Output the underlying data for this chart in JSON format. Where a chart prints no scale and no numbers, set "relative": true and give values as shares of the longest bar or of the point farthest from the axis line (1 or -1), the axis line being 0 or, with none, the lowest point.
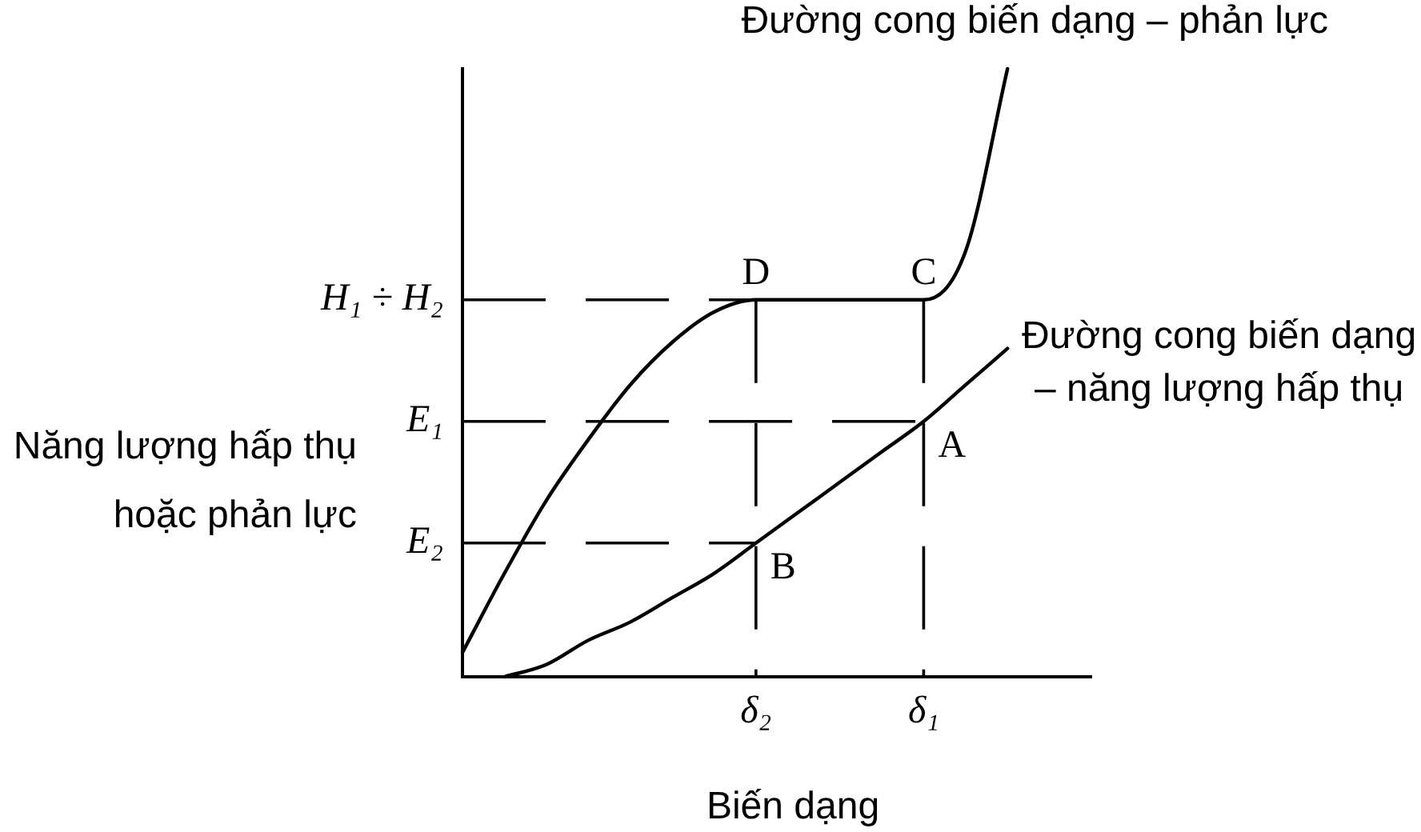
{
  "chart_data": {
    "type": "line",
    "relative": true,
    "grid": false,
    "legend": false,
    "marker": "none",
    "line_style": "solid",
    "categories": [
      null,
      null,
      null,
      null,
      null,
      null,
      null,
      "δ₂",
      null,
      null,
      null,
      "δ₁",
      null,
      null,
      null,
      null
    ],
    "xlabel": "Biến dạng",
    "ylabel": "Năng lượng hấp thụ hoặc phản lực",
    "series": [
      {
        "name": "Đường cong biến dạng – phản lực",
        "color": "#000000",
        "values": [
          0.04,
          0.17,
          0.29,
          0.39,
          0.48,
          0.55,
          0.6,
          0.62,
          0.62,
          0.62,
          0.62,
          0.62,
          0.7,
          1,
          null,
          null
        ]
      },
      {
        "name": "Đường cong biến dạng – năng lượng hấp thụ",
        "color": "#000000",
        "values": [
          null,
          0,
          0.02,
          0.06,
          0.09,
          0.13,
          0.17,
          0.22,
          0.27,
          0.32,
          0.37,
          0.42,
          0.48,
          0.54,
          null,
          null
        ]
      }
    ],
    "ref_lines": [
      {
        "axis": "y",
        "value": 0.62,
        "label": "H₁ ÷ H₂",
        "color": "#000000",
        "line_style": "dashed"
      },
      {
        "axis": "y",
        "value": 0.42,
        "label": "E₁",
        "color": "#000000",
        "line_style": "dashed"
      },
      {
        "axis": "y",
        "value": 0.22,
        "label": "E₂",
        "color": "#000000",
        "line_style": "dashed"
      },
      {
        "axis": "x",
        "value": "δ₂",
        "color": "#000000",
        "line_style": "dashed"
      },
      {
        "axis": "x",
        "value": "δ₁",
        "color": "#000000",
        "line_style": "dashed"
      }
    ],
    "annotations": [
      {
        "text": "D",
        "x": "δ₂",
        "y": 0.62
      },
      {
        "text": "C",
        "x": "δ₁",
        "y": 0.62
      },
      {
        "text": "A",
        "x": "δ₁",
        "y": 0.42
      },
      {
        "text": "B",
        "x": "δ₂",
        "y": 0.22
      }
    ]
  }
}
